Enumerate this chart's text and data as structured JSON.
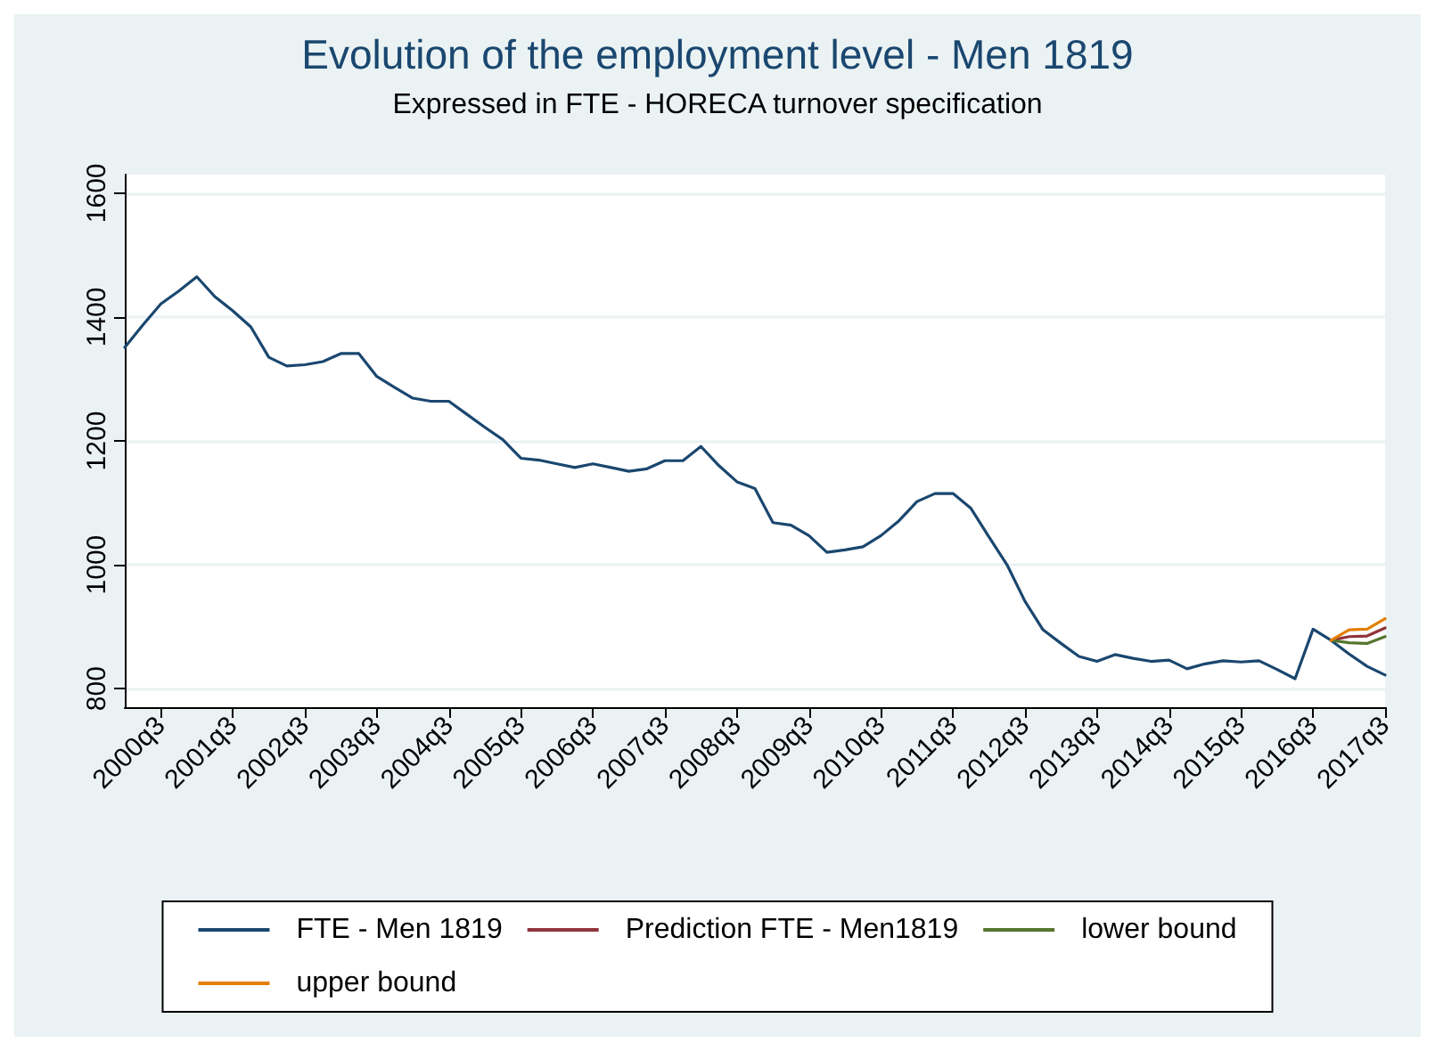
{
  "chart_data": {
    "type": "line",
    "title": "Evolution of the employment level - Men 1819",
    "subtitle": "Expressed in FTE - HORECA turnover specification",
    "categories": [
      null,
      null,
      "2000q3",
      null,
      null,
      null,
      "2001q3",
      null,
      null,
      null,
      "2002q3",
      null,
      null,
      null,
      "2003q3",
      null,
      null,
      null,
      "2004q3",
      null,
      null,
      null,
      "2005q3",
      null,
      null,
      null,
      "2006q3",
      null,
      null,
      null,
      "2007q3",
      null,
      null,
      null,
      "2008q3",
      null,
      null,
      null,
      "2009q3",
      null,
      null,
      null,
      "2010q3",
      null,
      null,
      null,
      "2011q3",
      null,
      null,
      null,
      "2012q3",
      null,
      null,
      null,
      "2013q3",
      null,
      null,
      null,
      "2014q3",
      null,
      null,
      null,
      "2015q3",
      null,
      null,
      null,
      "2016q3",
      null,
      null,
      null,
      "2017q3"
    ],
    "series": [
      {
        "name": "FTE - Men 1819",
        "color": "#1a476f",
        "values": [
          1351,
          1387,
          1421,
          1442,
          1465,
          1433,
          1410,
          1384,
          1335,
          1321,
          1323,
          1328,
          1341,
          1341,
          1304,
          1286,
          1269,
          1264,
          1264,
          1243,
          1222,
          1202,
          1172,
          1169,
          1163,
          1157,
          1163,
          1157,
          1151,
          1155,
          1168,
          1168,
          1191,
          1160,
          1134,
          1123,
          1068,
          1064,
          1047,
          1020,
          1024,
          1029,
          1047,
          1071,
          1102,
          1115,
          1115,
          1091,
          1045,
          1000,
          941,
          895,
          873,
          852,
          844,
          855,
          849,
          844,
          846,
          832,
          840,
          845,
          843,
          845,
          831,
          816,
          896,
          878,
          856,
          836,
          822
        ]
      },
      {
        "name": "Prediction FTE - Men1819",
        "color": "#90353b",
        "values": [
          null,
          null,
          null,
          null,
          null,
          null,
          null,
          null,
          null,
          null,
          null,
          null,
          null,
          null,
          null,
          null,
          null,
          null,
          null,
          null,
          null,
          null,
          null,
          null,
          null,
          null,
          null,
          null,
          null,
          null,
          null,
          null,
          null,
          null,
          null,
          null,
          null,
          null,
          null,
          null,
          null,
          null,
          null,
          null,
          null,
          null,
          null,
          null,
          null,
          null,
          null,
          null,
          null,
          null,
          null,
          null,
          null,
          null,
          null,
          null,
          null,
          null,
          null,
          null,
          null,
          null,
          null,
          878,
          884,
          885,
          898
        ]
      },
      {
        "name": "lower bound",
        "color": "#55752f",
        "values": [
          null,
          null,
          null,
          null,
          null,
          null,
          null,
          null,
          null,
          null,
          null,
          null,
          null,
          null,
          null,
          null,
          null,
          null,
          null,
          null,
          null,
          null,
          null,
          null,
          null,
          null,
          null,
          null,
          null,
          null,
          null,
          null,
          null,
          null,
          null,
          null,
          null,
          null,
          null,
          null,
          null,
          null,
          null,
          null,
          null,
          null,
          null,
          null,
          null,
          null,
          null,
          null,
          null,
          null,
          null,
          null,
          null,
          null,
          null,
          null,
          null,
          null,
          null,
          null,
          null,
          null,
          null,
          878,
          874,
          873,
          884
        ]
      },
      {
        "name": "upper bound",
        "color": "#e37e00",
        "values": [
          null,
          null,
          null,
          null,
          null,
          null,
          null,
          null,
          null,
          null,
          null,
          null,
          null,
          null,
          null,
          null,
          null,
          null,
          null,
          null,
          null,
          null,
          null,
          null,
          null,
          null,
          null,
          null,
          null,
          null,
          null,
          null,
          null,
          null,
          null,
          null,
          null,
          null,
          null,
          null,
          null,
          null,
          null,
          null,
          null,
          null,
          null,
          null,
          null,
          null,
          null,
          null,
          null,
          null,
          null,
          null,
          null,
          null,
          null,
          null,
          null,
          null,
          null,
          null,
          null,
          null,
          null,
          878,
          895,
          896,
          913
        ]
      }
    ],
    "ylim": [
      770,
      1630
    ],
    "yticks": [
      800,
      1000,
      1200,
      1400,
      1600
    ],
    "grid": "y",
    "legend": "bottom",
    "marker": "none",
    "line_style": "solid"
  }
}
